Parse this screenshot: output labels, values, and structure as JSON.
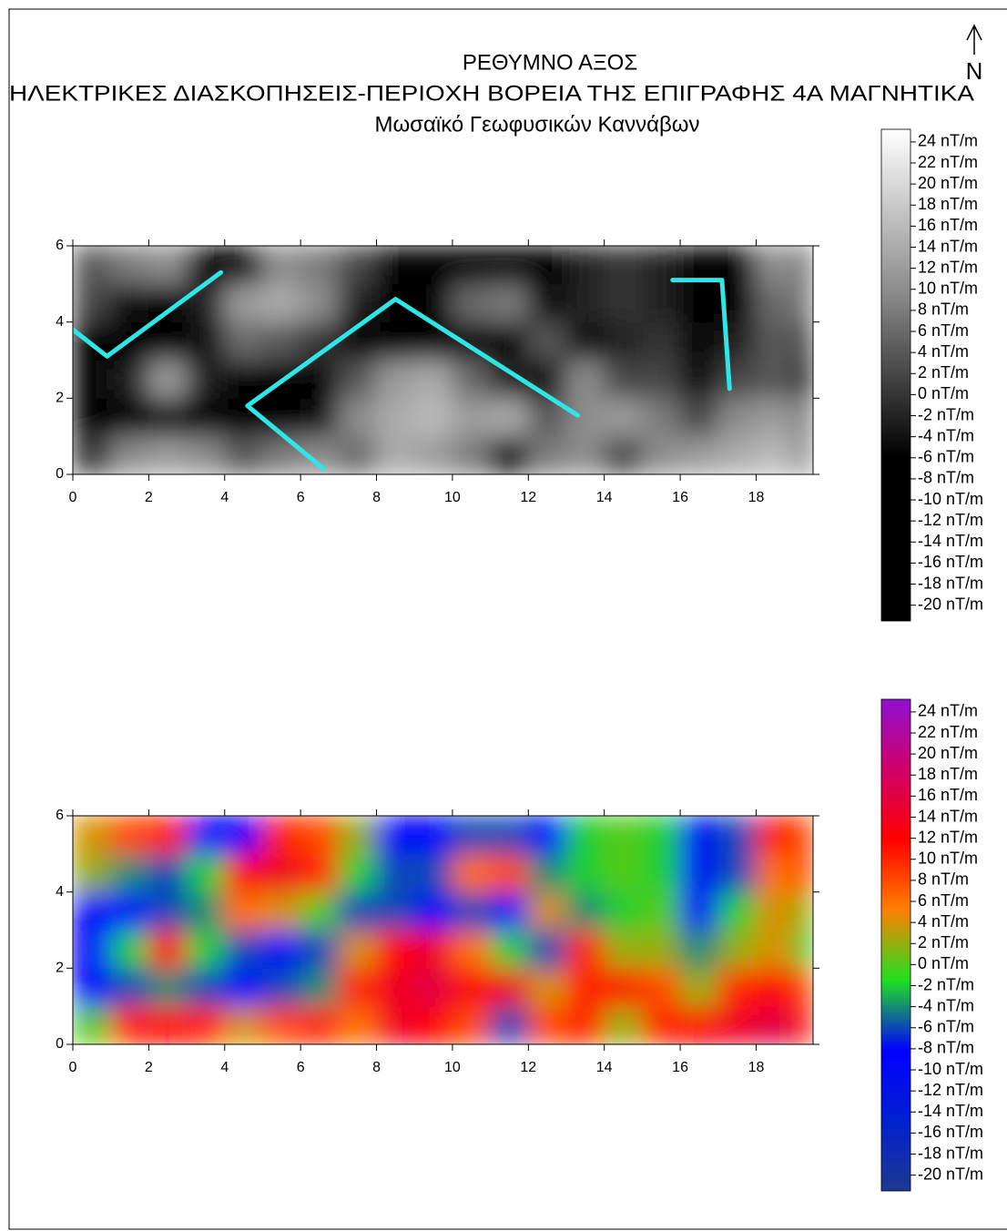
{
  "north_label": "N",
  "title": "ΡΕΘΥΜΝΟ ΑΞΟΣ",
  "subtitles": [
    "ΗΛΕΚΤΡΙΚΕΣ ΔΙΑΣΚΟΠΗΣΕΙΣ-ΠΕΡΙΟΧΗ ΒΟΡΕΙΑ ΤΗΣ ΕΠΙΓΡΑΦΗΣ 4Α ΜΑΓΝΗΤΙΚΑ",
    "Μωσαϊκό Γεωφυσικών Καννάβων"
  ],
  "chart_data": [
    {
      "type": "heatmap",
      "x_bins": [
        0,
        1,
        2,
        3,
        4,
        5,
        6,
        7,
        8,
        9,
        10,
        11,
        12,
        13,
        14,
        15,
        16,
        17,
        18,
        19,
        19.5
      ],
      "y_bins": [
        0,
        1,
        2,
        3,
        4,
        5,
        6
      ],
      "z": [
        [
          0,
          10,
          12,
          10,
          4,
          8,
          10,
          6,
          14,
          12,
          8,
          -6,
          8,
          10,
          2,
          10,
          12,
          14,
          16,
          10
        ],
        [
          -8,
          -6,
          -4,
          -6,
          -8,
          -6,
          -4,
          10,
          14,
          16,
          12,
          14,
          4,
          10,
          12,
          8,
          2,
          10,
          12,
          8
        ],
        [
          -8,
          -2,
          12,
          -2,
          -6,
          -8,
          -6,
          4,
          12,
          14,
          6,
          -2,
          -6,
          10,
          2,
          2,
          -4,
          2,
          4,
          -2
        ],
        [
          -8,
          -8,
          -6,
          -4,
          6,
          4,
          0,
          -6,
          -6,
          -8,
          -6,
          -8,
          4,
          -4,
          -2,
          0,
          -10,
          -2,
          4,
          2
        ],
        [
          2,
          -4,
          -6,
          -2,
          12,
          14,
          10,
          -2,
          -6,
          -6,
          6,
          8,
          -4,
          -2,
          0,
          -2,
          -10,
          -6,
          6,
          8
        ],
        [
          4,
          8,
          10,
          -8,
          -8,
          10,
          8,
          2,
          -8,
          -8,
          -6,
          -6,
          -8,
          -2,
          0,
          -2,
          -10,
          -6,
          10,
          8
        ]
      ],
      "xlim": [
        0,
        19.5
      ],
      "ylim": [
        0,
        6
      ],
      "xticks": [
        0,
        2,
        4,
        6,
        8,
        10,
        12,
        14,
        16,
        18
      ],
      "yticks": [
        0,
        2,
        4,
        6
      ],
      "zlim": [
        -21.5,
        25.2
      ],
      "colormap": [
        "#000000",
        "#000000",
        "#8a8a8a",
        "#ffffff"
      ],
      "colorbar_ticks": [
        {
          "value": 24,
          "label": "24 nT/m"
        },
        {
          "value": 22,
          "label": "22 nT/m"
        },
        {
          "value": 20,
          "label": "20 nT/m"
        },
        {
          "value": 18,
          "label": "18 nT/m"
        },
        {
          "value": 16,
          "label": "16 nT/m"
        },
        {
          "value": 14,
          "label": "14 nT/m"
        },
        {
          "value": 12,
          "label": "12 nT/m"
        },
        {
          "value": 10,
          "label": "10 nT/m"
        },
        {
          "value": 8,
          "label": "8 nT/m"
        },
        {
          "value": 6,
          "label": "6 nT/m"
        },
        {
          "value": 4,
          "label": "4 nT/m"
        },
        {
          "value": 2,
          "label": "2 nT/m"
        },
        {
          "value": 0,
          "label": "0 nT/m"
        },
        {
          "value": -2,
          "label": "-2 nT/m"
        },
        {
          "value": -4,
          "label": "-4 nT/m"
        },
        {
          "value": -6,
          "label": "-6 nT/m"
        },
        {
          "value": -8,
          "label": "-8 nT/m"
        },
        {
          "value": -10,
          "label": "-10 nT/m"
        },
        {
          "value": -12,
          "label": "-12 nT/m"
        },
        {
          "value": -14,
          "label": "-14 nT/m"
        },
        {
          "value": -16,
          "label": "-16 nT/m"
        },
        {
          "value": -18,
          "label": "-18 nT/m"
        },
        {
          "value": -20,
          "label": "-20 nT/m"
        }
      ],
      "overlays": [
        {
          "color": "#2ee6e6",
          "x": [
            0,
            0.9,
            3.9
          ],
          "y": [
            3.8,
            3.1,
            5.3
          ]
        },
        {
          "color": "#2ee6e6",
          "x": [
            6.6,
            4.6,
            8.5,
            13.3
          ],
          "y": [
            0.15,
            1.8,
            4.6,
            1.55
          ]
        },
        {
          "color": "#2ee6e6",
          "x": [
            15.8,
            17.1,
            17.3
          ],
          "y": [
            5.1,
            5.1,
            2.25
          ]
        }
      ]
    },
    {
      "type": "heatmap",
      "x_bins": [
        0,
        1,
        2,
        3,
        4,
        5,
        6,
        7,
        8,
        9,
        10,
        11,
        12,
        13,
        14,
        15,
        16,
        17,
        18,
        19,
        19.5
      ],
      "y_bins": [
        0,
        1,
        2,
        3,
        4,
        5,
        6
      ],
      "z": [
        [
          0,
          10,
          12,
          10,
          4,
          8,
          10,
          6,
          14,
          12,
          8,
          -6,
          8,
          10,
          2,
          10,
          12,
          14,
          16,
          10
        ],
        [
          -8,
          -6,
          -4,
          -6,
          -8,
          -6,
          -4,
          10,
          14,
          16,
          12,
          14,
          4,
          10,
          12,
          8,
          2,
          10,
          12,
          8
        ],
        [
          -8,
          -2,
          12,
          -2,
          -6,
          -8,
          -6,
          4,
          12,
          14,
          6,
          -2,
          -6,
          10,
          2,
          2,
          -4,
          2,
          4,
          -2
        ],
        [
          -8,
          -8,
          -6,
          -4,
          6,
          4,
          0,
          -6,
          -6,
          -8,
          -6,
          -8,
          4,
          -4,
          -2,
          0,
          -10,
          -2,
          4,
          2
        ],
        [
          2,
          -4,
          -6,
          -2,
          12,
          14,
          10,
          -2,
          -6,
          -6,
          6,
          8,
          -4,
          -2,
          0,
          -2,
          -10,
          -6,
          6,
          8
        ],
        [
          4,
          8,
          10,
          -8,
          -8,
          10,
          8,
          2,
          -8,
          -8,
          -6,
          -6,
          -8,
          -2,
          0,
          -2,
          -10,
          -6,
          10,
          8
        ]
      ],
      "xlim": [
        0,
        19.5
      ],
      "ylim": [
        0,
        6
      ],
      "xticks": [
        0,
        2,
        4,
        6,
        8,
        10,
        12,
        14,
        16,
        18
      ],
      "yticks": [
        0,
        2,
        4,
        6
      ],
      "zlim": [
        -21.5,
        25.2
      ],
      "colormap": [
        "#1c3a90",
        "#0020d0",
        "#0000ff",
        "#20e020",
        "#ff8000",
        "#ff0000",
        "#d0006a",
        "#9010d0"
      ],
      "colorbar_ticks": [
        {
          "value": 24,
          "label": "24 nT/m"
        },
        {
          "value": 22,
          "label": "22 nT/m"
        },
        {
          "value": 20,
          "label": "20 nT/m"
        },
        {
          "value": 18,
          "label": "18 nT/m"
        },
        {
          "value": 16,
          "label": "16 nT/m"
        },
        {
          "value": 14,
          "label": "14 nT/m"
        },
        {
          "value": 12,
          "label": "12 nT/m"
        },
        {
          "value": 10,
          "label": "10 nT/m"
        },
        {
          "value": 8,
          "label": "8 nT/m"
        },
        {
          "value": 6,
          "label": "6 nT/m"
        },
        {
          "value": 4,
          "label": "4 nT/m"
        },
        {
          "value": 2,
          "label": "2 nT/m"
        },
        {
          "value": 0,
          "label": "0 nT/m"
        },
        {
          "value": -2,
          "label": "-2 nT/m"
        },
        {
          "value": -4,
          "label": "-4 nT/m"
        },
        {
          "value": -6,
          "label": "-6 nT/m"
        },
        {
          "value": -8,
          "label": "-8 nT/m"
        },
        {
          "value": -10,
          "label": "-10 nT/m"
        },
        {
          "value": -12,
          "label": "-12 nT/m"
        },
        {
          "value": -14,
          "label": "-14 nT/m"
        },
        {
          "value": -16,
          "label": "-16 nT/m"
        },
        {
          "value": -18,
          "label": "-18 nT/m"
        },
        {
          "value": -20,
          "label": "-20 nT/m"
        }
      ]
    }
  ]
}
